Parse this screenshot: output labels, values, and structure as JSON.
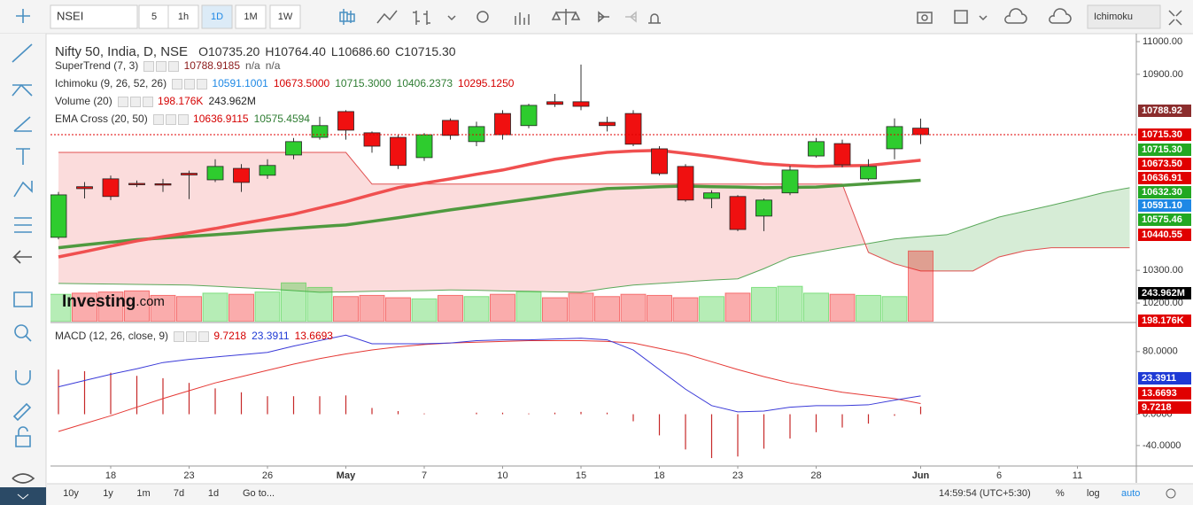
{
  "toolbar": {
    "symbol": "NSEI",
    "intervals": [
      "5",
      "1h",
      "1D",
      "1M",
      "1W"
    ],
    "active_interval": "1D",
    "study": "Ichimoku"
  },
  "bottom_bar": {
    "ranges": [
      "10y",
      "1y",
      "1m",
      "7d",
      "1d"
    ],
    "goto": "Go to...",
    "time": "14:59:54 (UTC+5:30)",
    "percent": "%",
    "log": "log",
    "auto": "auto"
  },
  "watermark": [
    "Investing",
    ".com"
  ],
  "chart_data": {
    "type": "candlestick",
    "title": "Nifty 50, India, D, NSE",
    "ohlc_legend": [
      "O10735.20",
      "H10764.40",
      "L10686.60",
      "C10715.30"
    ],
    "indicators": [
      {
        "name": "SuperTrend (7, 3)",
        "values": [
          {
            "text": "10788.9185",
            "color": "#8b1a1a"
          },
          {
            "text": "n/a",
            "color": "#555555"
          },
          {
            "text": "n/a",
            "color": "#555555"
          }
        ]
      },
      {
        "name": "Ichimoku (9, 26, 52, 26)",
        "values": [
          {
            "text": "10591.1001",
            "color": "#1e88e5"
          },
          {
            "text": "10673.5000",
            "color": "#d50000"
          },
          {
            "text": "10715.3000",
            "color": "#2e7d32"
          },
          {
            "text": "10406.2373",
            "color": "#2e7d32"
          },
          {
            "text": "10295.1250",
            "color": "#d50000"
          }
        ]
      },
      {
        "name": "Volume (20)",
        "values": [
          {
            "text": "198.176K",
            "color": "#d50000"
          },
          {
            "text": "243.962M",
            "color": "#222222"
          }
        ]
      },
      {
        "name": "EMA Cross (20, 50)",
        "values": [
          {
            "text": "10636.9115",
            "color": "#d50000"
          },
          {
            "text": "10575.4594",
            "color": "#2e7d32"
          }
        ]
      }
    ],
    "categories": [
      null,
      null,
      "18",
      null,
      null,
      "23",
      null,
      null,
      "26",
      null,
      null,
      "May",
      null,
      null,
      "7",
      null,
      null,
      "10",
      null,
      null,
      "15",
      null,
      null,
      "18",
      null,
      null,
      "23",
      null,
      null,
      "28",
      null,
      null,
      null,
      "Jun",
      null,
      null,
      "6",
      null,
      null,
      "11",
      null,
      null
    ],
    "open": [
      10401,
      10556,
      10580,
      10566,
      10565,
      10597,
      10577,
      10612,
      10591,
      10653,
      10707,
      10786,
      10721,
      10707,
      10645,
      10759,
      10694,
      10780,
      10743,
      10816,
      10816,
      10753,
      10780,
      10672,
      10618,
      10520,
      10526,
      10466,
      10537,
      10650,
      10688,
      10580,
      10672,
      10735.2,
      null,
      null,
      null,
      null,
      null,
      null,
      null,
      null
    ],
    "high": [
      10540,
      10570,
      10590,
      10575,
      10580,
      10605,
      10640,
      10625,
      10640,
      10705,
      10770,
      10790,
      10725,
      10715,
      10720,
      10765,
      10755,
      10790,
      10810,
      10840,
      10930,
      10770,
      10790,
      10680,
      10625,
      10545,
      10530,
      10520,
      10620,
      10705,
      10700,
      10640,
      10765,
      10764.4,
      null,
      null,
      null,
      null,
      null,
      null,
      null,
      null
    ],
    "low": [
      10395,
      10520,
      10515,
      10555,
      10540,
      10518,
      10570,
      10540,
      10580,
      10640,
      10700,
      10700,
      10660,
      10610,
      10635,
      10700,
      10680,
      10700,
      10735,
      10800,
      10790,
      10725,
      10680,
      10590,
      10510,
      10490,
      10420,
      10420,
      10530,
      10645,
      10615,
      10575,
      10640,
      10686.6,
      null,
      null,
      null,
      null,
      null,
      null,
      null,
      null
    ],
    "close": [
      10531,
      10550,
      10526,
      10563,
      10562,
      10592,
      10618,
      10569,
      10621,
      10694,
      10743,
      10729,
      10680,
      10621,
      10715,
      10713,
      10740,
      10715,
      10805,
      10808,
      10802,
      10743,
      10686,
      10596,
      10515,
      10537,
      10425,
      10515,
      10607,
      10694,
      10623,
      10618,
      10740,
      10715.3,
      null,
      null,
      null,
      null,
      null,
      null,
      null,
      null
    ],
    "up_color": "#2ecc2e",
    "down_color": "#f01010",
    "ema_fast": {
      "color": "#f05050",
      "values": [
        10341,
        10357,
        10374,
        10390,
        10403,
        10415,
        10428,
        10443,
        10457,
        10472,
        10491,
        10510,
        10532,
        10553,
        10567,
        10580,
        10594,
        10607,
        10624,
        10640,
        10651,
        10661,
        10665,
        10667,
        10658,
        10648,
        10637,
        10626,
        10621,
        10618,
        10620,
        10621,
        10629,
        10636.91,
        null,
        null,
        null,
        null,
        null,
        null,
        null,
        null
      ]
    },
    "ema_slow": {
      "color": "#4f9a3f",
      "values": [
        10369,
        10378,
        10386,
        10394,
        10399,
        10404,
        10409,
        10415,
        10422,
        10428,
        10434,
        10439,
        10450,
        10461,
        10473,
        10485,
        10496,
        10507,
        10518,
        10529,
        10540,
        10550,
        10553,
        10556,
        10558,
        10556,
        10555,
        10553,
        10554,
        10555,
        10560,
        10565,
        10570,
        10575.46,
        null,
        null,
        null,
        null,
        null,
        null,
        null,
        null
      ]
    },
    "cloud": {
      "up_fill": "#d6ecd6",
      "down_fill": "#fbdcdc",
      "span_a": {
        "color": "#5aa85a",
        "values": [
          10260,
          10259,
          10258,
          10257,
          10256,
          10255,
          10251,
          10247,
          10243,
          10238,
          10233,
          10234,
          10236,
          10237,
          10238,
          10240,
          10239,
          10237,
          10236,
          10234,
          10233,
          10245,
          10255,
          10260,
          10265,
          10270,
          10274,
          10305,
          10340,
          10355,
          10369,
          10382,
          10396,
          10403,
          10409,
          10436,
          10463,
          10481,
          10499,
          10518,
          10538,
          10553
        ]
      },
      "span_b": {
        "color": "#e05050",
        "values": [
          10661,
          10661,
          10661,
          10661,
          10661,
          10661,
          10661,
          10661,
          10661,
          10661,
          10661,
          10661,
          10564,
          10564,
          10564,
          10564,
          10564,
          10564,
          10564,
          10564,
          10564,
          10564,
          10564,
          10564,
          10564,
          10564,
          10564,
          10564,
          10564,
          10564,
          10564,
          10355,
          10320,
          10298,
          10298,
          10298,
          10341,
          10360,
          10369,
          10369,
          10369,
          10369
        ]
      }
    },
    "volume": {
      "ylim": [
        0,
        700
      ],
      "values": [
        240,
        250,
        260,
        270,
        230,
        220,
        250,
        240,
        260,
        340,
        300,
        220,
        230,
        210,
        200,
        230,
        220,
        240,
        260,
        210,
        250,
        220,
        240,
        230,
        210,
        220,
        250,
        300,
        310,
        250,
        240,
        230,
        220,
        620,
        null,
        null,
        null,
        null,
        null,
        null,
        null,
        null
      ]
    },
    "ylim": [
      10143,
      11019
    ],
    "yticks": [
      {
        "value": 11000,
        "label": "11000.00"
      },
      {
        "value": 10900,
        "label": "10900.00"
      },
      {
        "value": 10300,
        "label": "10300.00"
      },
      {
        "value": 10200,
        "label": "10200.00"
      }
    ],
    "price_labels": [
      {
        "text": "10788.92",
        "color": "#8b2d2d"
      },
      {
        "text": "10715.30",
        "color": "#e00000"
      },
      {
        "text": "10715.30",
        "color": "#22a822"
      },
      {
        "text": "10673.50",
        "color": "#e00000"
      },
      {
        "text": "10636.91",
        "color": "#e00000"
      },
      {
        "text": "10632.30",
        "color": "#22a822"
      },
      {
        "text": "10591.10",
        "color": "#1e88e5"
      },
      {
        "text": "10575.46",
        "color": "#22a822"
      },
      {
        "text": "10440.55",
        "color": "#e00000"
      },
      {
        "text": "243.962M",
        "color": "#000000"
      },
      {
        "text": "198.176K",
        "color": "#e00000"
      }
    ],
    "macd": {
      "legend": {
        "name": "MACD (12, 26, close, 9)",
        "values": [
          {
            "text": "9.7218",
            "color": "#d50000"
          },
          {
            "text": "23.3911",
            "color": "#1e3ad5"
          },
          {
            "text": "13.6693",
            "color": "#d50000"
          }
        ]
      },
      "ylim": [
        -65,
        116
      ],
      "yticks": [
        {
          "value": 80,
          "label": "80.0000"
        },
        {
          "value": 0,
          "label": "0.0000"
        },
        {
          "value": -40,
          "label": "-40.0000"
        }
      ],
      "macd": {
        "color": "#3a3ad8",
        "values": [
          35,
          43,
          51,
          58,
          66,
          70,
          73,
          76,
          79,
          87,
          94,
          101,
          90,
          90,
          90,
          91,
          94,
          95,
          95,
          96,
          97,
          95,
          82,
          57,
          32,
          11,
          3,
          4,
          9,
          11,
          11,
          12,
          18,
          23.3911,
          null,
          null,
          null,
          null,
          null,
          null,
          null,
          null
        ]
      },
      "signal": {
        "color": "#e53935",
        "values": [
          -22,
          -12,
          -2,
          9,
          20,
          30,
          40,
          48,
          56,
          64,
          71,
          77,
          82,
          86,
          89,
          91,
          92,
          93,
          94,
          94,
          94,
          93,
          91,
          84,
          77,
          67,
          57,
          48,
          40,
          34,
          28,
          24,
          20,
          13.6693,
          null,
          null,
          null,
          null,
          null,
          null,
          null,
          null
        ]
      },
      "histogram": {
        "color": "#c62828",
        "values": [
          57,
          55,
          53,
          49,
          46,
          40,
          33,
          28,
          23,
          23,
          23,
          24,
          8,
          4,
          1,
          0,
          2,
          2,
          1,
          2,
          3,
          2,
          -9,
          -27,
          -45,
          -56,
          -54,
          -44,
          -31,
          -23,
          -17,
          -12,
          -2,
          9.7218,
          null,
          null,
          null,
          null,
          null,
          null,
          null,
          null
        ]
      },
      "labels": [
        {
          "text": "23.3911",
          "color": "#1e3ad5"
        },
        {
          "text": "13.6693",
          "color": "#e00000"
        },
        {
          "text": "9.7218",
          "color": "#e00000"
        }
      ]
    }
  }
}
